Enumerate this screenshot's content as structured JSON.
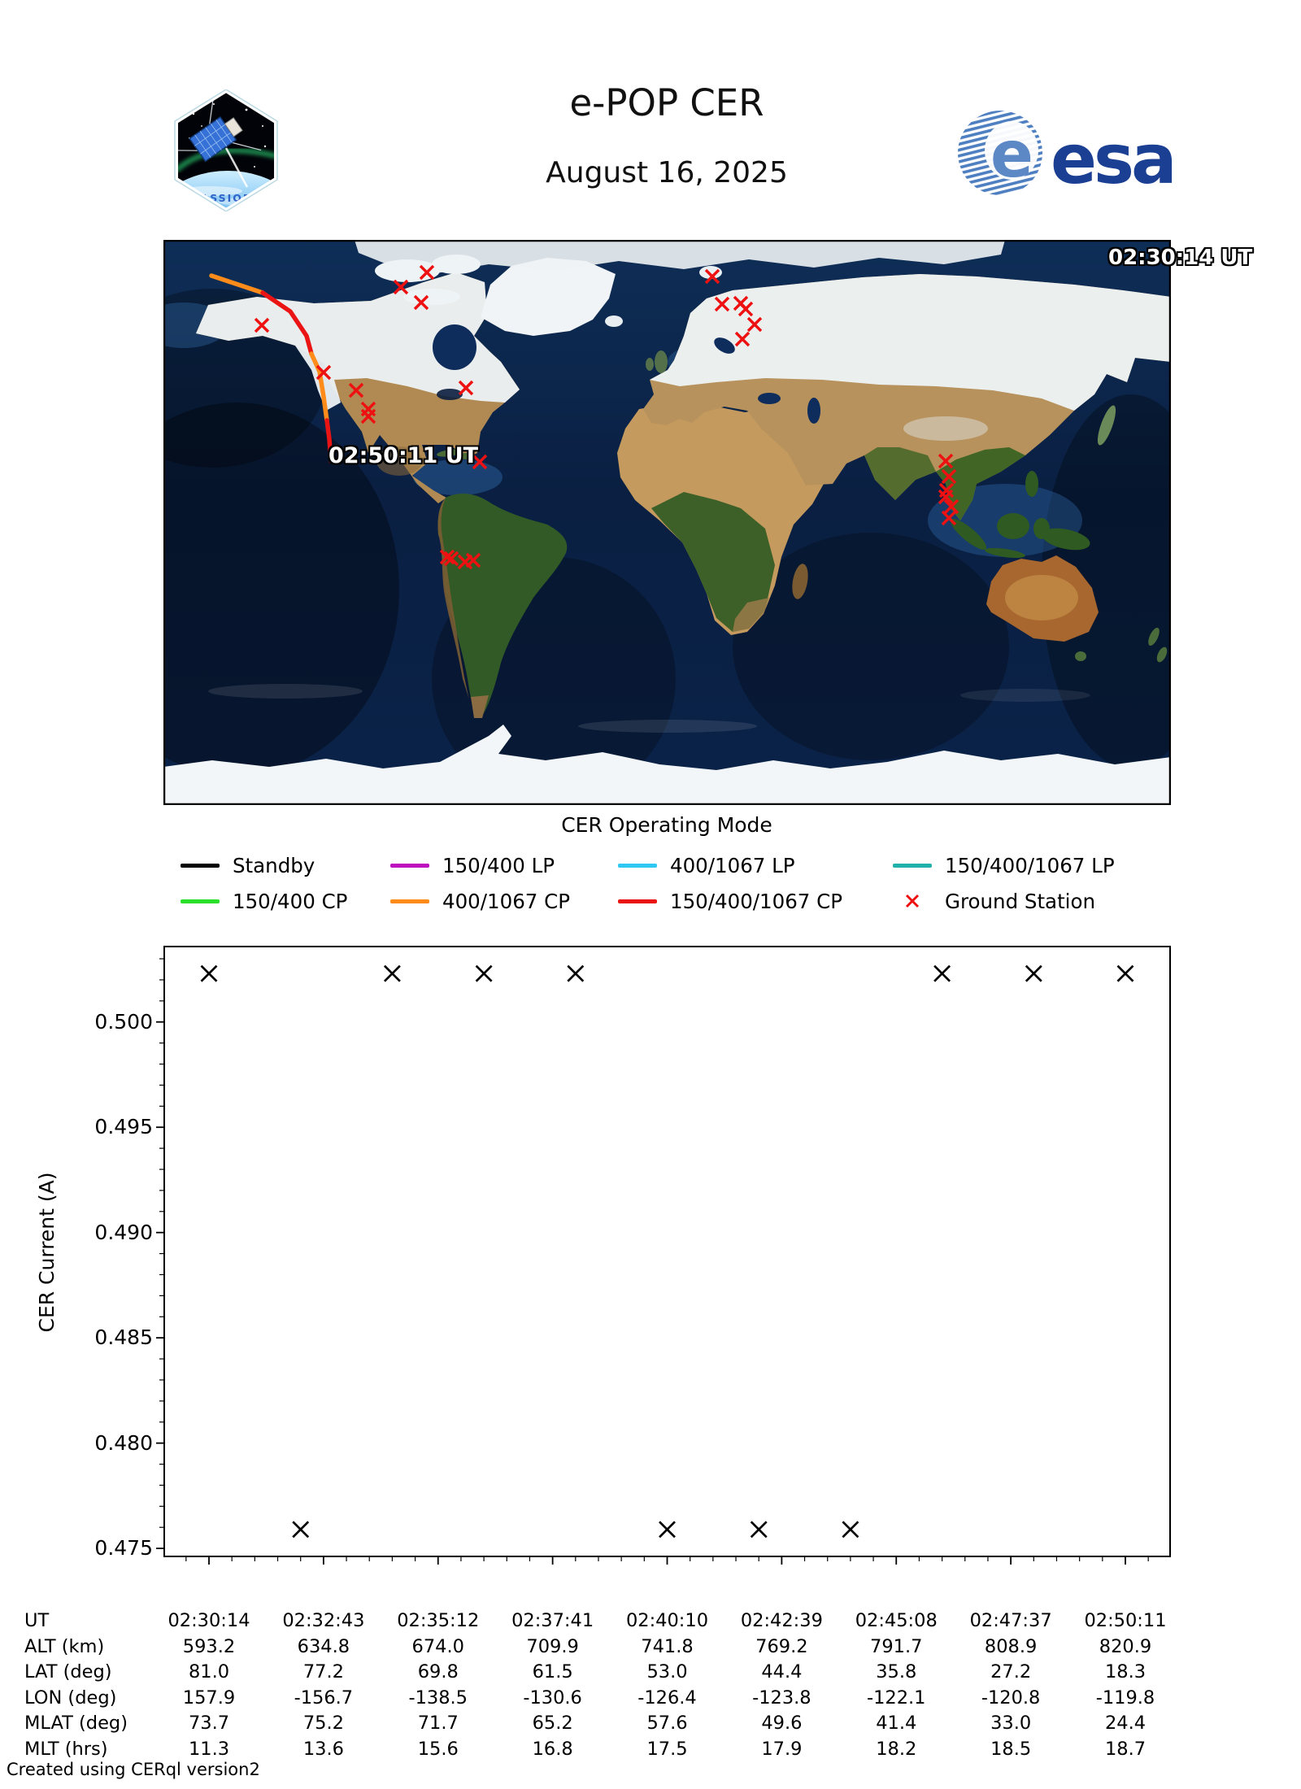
{
  "header": {
    "title": "e-POP CER",
    "date": "August 16, 2025",
    "esa_wordmark": "esa",
    "esa_globe_letter": "e",
    "patch_label": "CASSIOPE"
  },
  "map": {
    "timestamp": "02:30:14 UT",
    "track_label": "02:50:11 UT",
    "track_segments": [
      {
        "mode": "400/1067 CP",
        "color": "#ff8c1a",
        "points": [
          [
            59,
            44
          ],
          [
            122,
            65
          ]
        ]
      },
      {
        "mode": "150/400/1067 CP",
        "color": "#ea1414",
        "points": [
          [
            122,
            65
          ],
          [
            156,
            88
          ],
          [
            176,
            118
          ],
          [
            182,
            140
          ]
        ]
      },
      {
        "mode": "400/1067 CP",
        "color": "#ff8c1a",
        "points": [
          [
            182,
            140
          ],
          [
            192,
            162
          ],
          [
            197,
            193
          ],
          [
            201,
            222
          ]
        ]
      },
      {
        "mode": "150/400/1067 CP",
        "color": "#ea1414",
        "points": [
          [
            201,
            222
          ],
          [
            204,
            245
          ],
          [
            206,
            272
          ]
        ]
      }
    ],
    "ground_station_color": "#ee1111",
    "ground_stations": [
      [
        324,
        40
      ],
      [
        292,
        58
      ],
      [
        317,
        77
      ],
      [
        121,
        105
      ],
      [
        197,
        163
      ],
      [
        237,
        185
      ],
      [
        252,
        208
      ],
      [
        252,
        217
      ],
      [
        372,
        182
      ],
      [
        389,
        273
      ],
      [
        349,
        390
      ],
      [
        354,
        392
      ],
      [
        371,
        396
      ],
      [
        381,
        394
      ],
      [
        675,
        45
      ],
      [
        687,
        79
      ],
      [
        710,
        78
      ],
      [
        716,
        85
      ],
      [
        727,
        104
      ],
      [
        712,
        122
      ],
      [
        962,
        272
      ],
      [
        966,
        291
      ],
      [
        963,
        308
      ],
      [
        962,
        316
      ],
      [
        969,
        328
      ],
      [
        966,
        342
      ]
    ]
  },
  "legend": {
    "title": "CER Operating Mode",
    "rows": [
      [
        {
          "label": "Standby",
          "color": "#000000",
          "type": "line"
        },
        {
          "label": "150/400 LP",
          "color": "#bf10bf",
          "type": "line"
        },
        {
          "label": "400/1067 LP",
          "color": "#2fc8f2",
          "type": "line"
        },
        {
          "label": "150/400/1067 LP",
          "color": "#20b2aa",
          "type": "line"
        }
      ],
      [
        {
          "label": "150/400 CP",
          "color": "#2ae02a",
          "type": "line"
        },
        {
          "label": "400/1067 CP",
          "color": "#ff8c1a",
          "type": "line"
        },
        {
          "label": "150/400/1067 CP",
          "color": "#ea1414",
          "type": "line"
        },
        {
          "label": "Ground Station",
          "color": "#ee1111",
          "type": "marker-x"
        }
      ]
    ]
  },
  "chart_data": {
    "type": "scatter",
    "title": "",
    "xlabel": "UT",
    "ylabel": "CER Current (A)",
    "marker": "x",
    "marker_color": "#000000",
    "ylim": [
      0.47458,
      0.50362
    ],
    "y_major_ticks": [
      0.475,
      0.48,
      0.485,
      0.49,
      0.495,
      0.5
    ],
    "y_minor_step": 0.001,
    "x_tick_labels": [
      "02:30:14",
      "02:32:43",
      "02:35:12",
      "02:37:41",
      "02:40:10",
      "02:42:39",
      "02:45:08",
      "02:47:37",
      "02:50:11"
    ],
    "x_minor_per_major": 5,
    "x_margin_frac": 0.0452,
    "grid": false,
    "legend_position": "above",
    "points": [
      {
        "time": "02:30:14",
        "x_frac": 0.0,
        "value": 0.5023
      },
      {
        "time": "02:32:14",
        "x_frac": 0.1,
        "value": 0.4759
      },
      {
        "time": "02:34:13",
        "x_frac": 0.2,
        "value": 0.5023
      },
      {
        "time": "02:36:13",
        "x_frac": 0.3,
        "value": 0.5023
      },
      {
        "time": "02:38:13",
        "x_frac": 0.4,
        "value": 0.5023
      },
      {
        "time": "02:40:13",
        "x_frac": 0.5,
        "value": 0.4759
      },
      {
        "time": "02:42:12",
        "x_frac": 0.6,
        "value": 0.4759
      },
      {
        "time": "02:44:12",
        "x_frac": 0.7,
        "value": 0.4759
      },
      {
        "time": "02:46:12",
        "x_frac": 0.8,
        "value": 0.5023
      },
      {
        "time": "02:48:11",
        "x_frac": 0.9,
        "value": 0.5023
      },
      {
        "time": "02:50:11",
        "x_frac": 1.0,
        "value": 0.5023
      }
    ]
  },
  "table": {
    "rows": [
      {
        "label": "UT",
        "values": [
          "02:30:14",
          "02:32:43",
          "02:35:12",
          "02:37:41",
          "02:40:10",
          "02:42:39",
          "02:45:08",
          "02:47:37",
          "02:50:11"
        ]
      },
      {
        "label": "ALT (km)",
        "values": [
          "593.2",
          "634.8",
          "674.0",
          "709.9",
          "741.8",
          "769.2",
          "791.7",
          "808.9",
          "820.9"
        ]
      },
      {
        "label": "LAT (deg)",
        "values": [
          "81.0",
          "77.2",
          "69.8",
          "61.5",
          "53.0",
          "44.4",
          "35.8",
          "27.2",
          "18.3"
        ]
      },
      {
        "label": "LON (deg)",
        "values": [
          "157.9",
          "-156.7",
          "-138.5",
          "-130.6",
          "-126.4",
          "-123.8",
          "-122.1",
          "-120.8",
          "-119.8"
        ]
      },
      {
        "label": "MLAT (deg)",
        "values": [
          "73.7",
          "75.2",
          "71.7",
          "65.2",
          "57.6",
          "49.6",
          "41.4",
          "33.0",
          "24.4"
        ]
      },
      {
        "label": "MLT (hrs)",
        "values": [
          "11.3",
          "13.6",
          "15.6",
          "16.8",
          "17.5",
          "17.9",
          "18.2",
          "18.5",
          "18.7"
        ]
      }
    ]
  },
  "footer": "Created using CERql version2"
}
